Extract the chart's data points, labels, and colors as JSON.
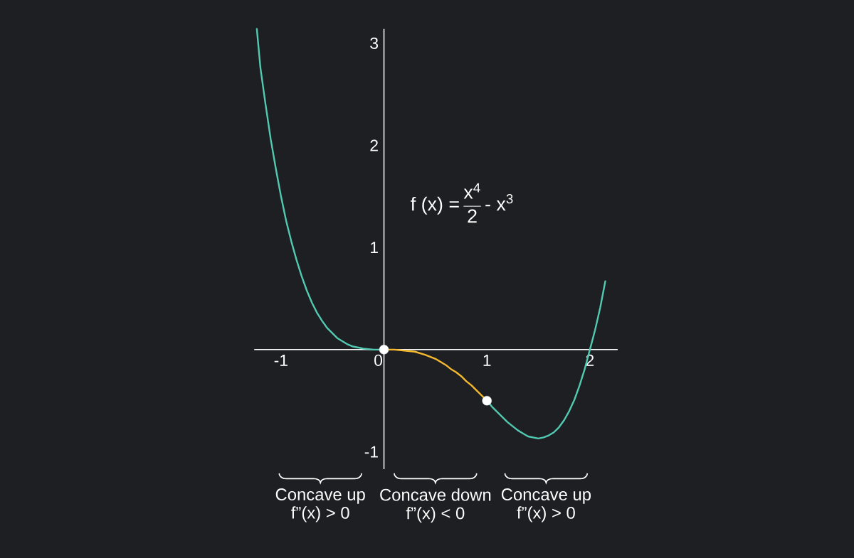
{
  "chart_data": {
    "type": "line",
    "xlim": [
      -1.26,
      2.27
    ],
    "ylim": [
      -1.17,
      3.14
    ],
    "xticks": [
      -1,
      0,
      1,
      2
    ],
    "yticks": [
      -1,
      1,
      2,
      3
    ],
    "annotations": [
      "\\text{f (x) =}\\,\\frac{\\text{x}^{\\text{4}}}{\\text{2}}\\,\\text{- x}^{\\text{3}}",
      "Concave up",
      "f”(x) > 0",
      "Concave down",
      "f”(x) < 0",
      "Concave up",
      "f”(x) > 0"
    ],
    "series": [
      {
        "color": "#52c9b1",
        "x": [
          -1.235,
          -1.2,
          -1.15,
          -1.1,
          -1.05,
          -1,
          -0.95,
          -0.9,
          -0.85,
          -0.8,
          -0.75,
          -0.7,
          -0.65,
          -0.6,
          -0.55,
          -0.5,
          -0.45,
          -0.4,
          -0.35,
          -0.3,
          -0.2,
          -0.1,
          0
        ],
        "values": [
          3.14,
          2.76,
          2.4,
          2.06,
          1.77,
          1.5,
          1.26,
          1.06,
          0.88,
          0.72,
          0.58,
          0.46,
          0.36,
          0.28,
          0.21,
          0.16,
          0.11,
          0.08,
          0.05,
          0.03,
          0.01,
          0,
          0
        ]
      },
      {
        "color": "#f5b82e",
        "x": [
          0,
          0.1,
          0.2,
          0.3,
          0.4,
          0.5,
          0.55,
          0.6,
          0.65,
          0.7,
          0.75,
          0.8,
          0.85,
          0.9,
          0.95,
          1
        ],
        "values": [
          0,
          0,
          -0.01,
          -0.02,
          -0.05,
          -0.09,
          -0.12,
          -0.15,
          -0.19,
          -0.22,
          -0.26,
          -0.31,
          -0.35,
          -0.4,
          -0.45,
          -0.5
        ]
      },
      {
        "color": "#52c9b1",
        "x": [
          1,
          1.05,
          1.1,
          1.15,
          1.2,
          1.25,
          1.3,
          1.35,
          1.4,
          1.45,
          1.5,
          1.55,
          1.6,
          1.65,
          1.7,
          1.75,
          1.8,
          1.85,
          1.9,
          1.95,
          2,
          2.05,
          2.1,
          2.15
        ],
        "values": [
          -0.5,
          -0.56,
          -0.61,
          -0.66,
          -0.71,
          -0.75,
          -0.79,
          -0.82,
          -0.85,
          -0.86,
          -0.87,
          -0.86,
          -0.84,
          -0.81,
          -0.76,
          -0.69,
          -0.6,
          -0.49,
          -0.35,
          -0.19,
          0,
          0.19,
          0.41,
          0.67
        ]
      },
      {
        "type": "scatter",
        "marker": "circle",
        "color": "#ffffff",
        "x": [
          0,
          1
        ],
        "values": [
          0,
          -0.5
        ]
      }
    ]
  }
}
